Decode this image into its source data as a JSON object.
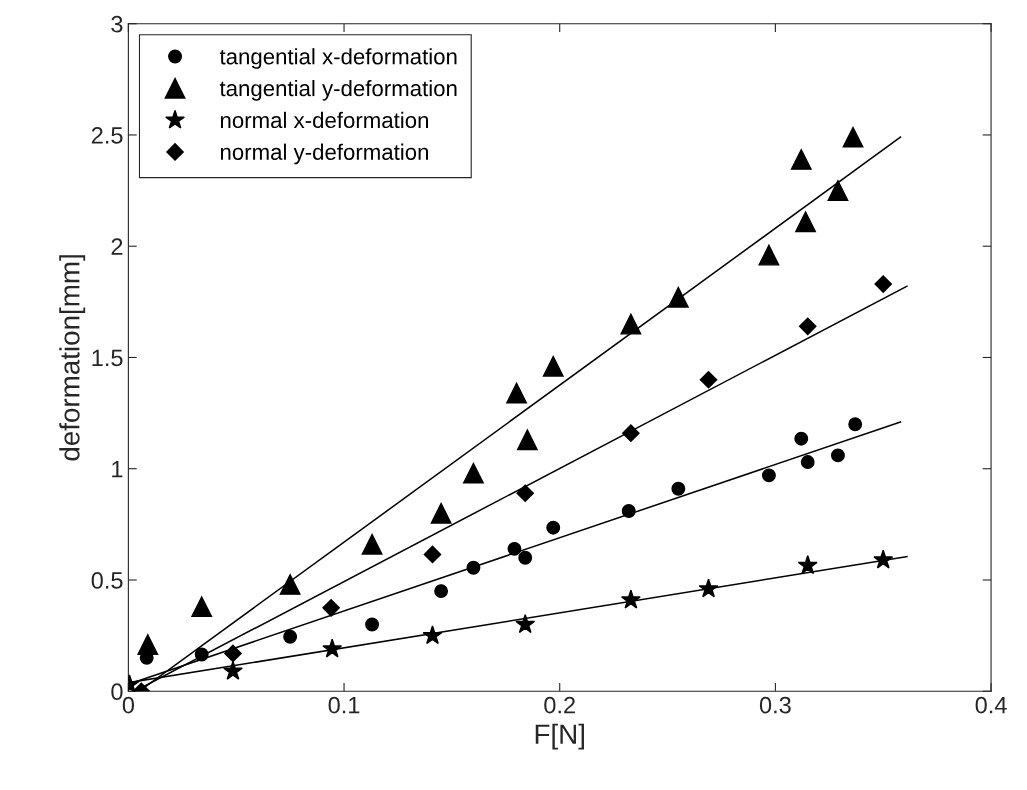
{
  "chart_data": {
    "type": "scatter",
    "xlabel": "F[N]",
    "ylabel": "deformation[mm]",
    "xlim": [
      0,
      0.4
    ],
    "ylim": [
      0,
      3
    ],
    "xticks": [
      0,
      0.1,
      0.2,
      0.3,
      0.4
    ],
    "yticks": [
      0,
      0.5,
      1,
      1.5,
      2,
      2.5,
      3
    ],
    "grid": false,
    "legend": "top left",
    "series": [
      {
        "name": "tangential x-deformation",
        "color": "#000000",
        "marker": "circle",
        "x": [
          0.0085,
          0.034,
          0.075,
          0.113,
          0.145,
          0.16,
          0.179,
          0.184,
          0.197,
          0.232,
          0.255,
          0.297,
          0.312,
          0.315,
          0.329,
          0.337
        ],
        "values": [
          0.15,
          0.165,
          0.245,
          0.3,
          0.45,
          0.555,
          0.64,
          0.6,
          0.735,
          0.81,
          0.91,
          0.97,
          1.135,
          1.03,
          1.06,
          1.2
        ]
      },
      {
        "name": "tangential y-deformation",
        "color": "#000000",
        "marker": "triangle",
        "x": [
          0.009,
          0.034,
          0.075,
          0.113,
          0.145,
          0.16,
          0.185,
          0.18,
          0.197,
          0.233,
          0.255,
          0.297,
          0.314,
          0.312,
          0.329,
          0.336
        ],
        "values": [
          0.21,
          0.38,
          0.48,
          0.66,
          0.8,
          0.98,
          1.13,
          1.34,
          1.46,
          1.65,
          1.77,
          1.96,
          2.11,
          2.39,
          2.25,
          2.49
        ]
      },
      {
        "name": "normal x-deformation",
        "color": "#000000",
        "marker": "star",
        "x": [
          0.0005,
          0.0485,
          0.0945,
          0.141,
          0.184,
          0.233,
          0.269,
          0.315,
          0.35
        ],
        "values": [
          0.03,
          0.09,
          0.19,
          0.25,
          0.3,
          0.41,
          0.46,
          0.565,
          0.59
        ]
      },
      {
        "name": "normal y-deformation",
        "color": "#000000",
        "marker": "diamond",
        "x": [
          0.006,
          0.0485,
          0.094,
          0.141,
          0.184,
          0.233,
          0.269,
          0.315,
          0.35
        ],
        "values": [
          0,
          0.17,
          0.375,
          0.615,
          0.89,
          1.16,
          1.4,
          1.64,
          1.83
        ]
      },
      {
        "type": "line",
        "color": "#000000",
        "line_style": "solid",
        "x": [
          0.001,
          0.358
        ],
        "values": [
          0.035,
          1.21
        ]
      },
      {
        "type": "line",
        "color": "#000000",
        "line_style": "solid",
        "x": [
          0.005,
          0.358
        ],
        "values": [
          0,
          2.49
        ]
      },
      {
        "type": "line",
        "color": "#000000",
        "line_style": "solid",
        "x": [
          0.001,
          0.361
        ],
        "values": [
          0.04,
          0.605
        ]
      },
      {
        "type": "line",
        "color": "#000000",
        "line_style": "solid",
        "x": [
          0.005,
          0.361
        ],
        "values": [
          0.01,
          1.82
        ]
      }
    ]
  }
}
